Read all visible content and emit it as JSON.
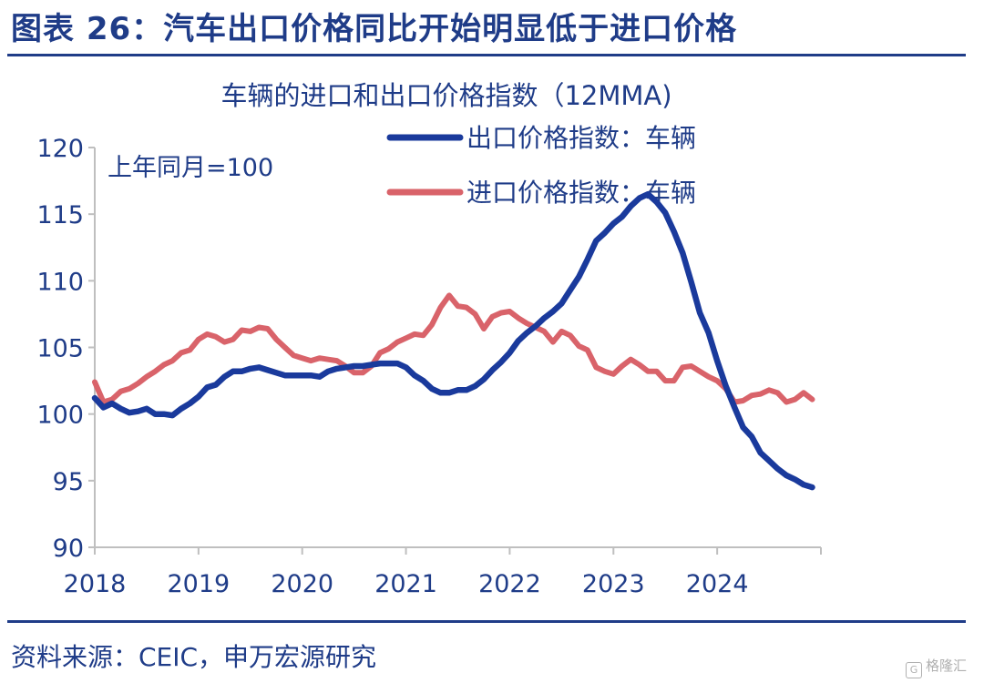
{
  "figure": {
    "title": "图表 26：汽车出口价格同比开始明显低于进口价格",
    "source": "资料来源：CEIC，申万宏源研究",
    "watermark": "格隆汇"
  },
  "colors": {
    "accent": "#1f3c88",
    "export_line": "#1a3a9c",
    "import_line": "#d9636a",
    "axis": "#bfbfbf"
  },
  "chart_data": {
    "type": "line",
    "title": "车辆的进口和出口价格指数（12MMA)",
    "annotation": "上年同月=100",
    "xlabel": "",
    "ylabel": "",
    "ylim": [
      90,
      120
    ],
    "yticks": [
      90,
      95,
      100,
      105,
      110,
      115,
      120
    ],
    "xlim": [
      2018,
      2025
    ],
    "xticks": [
      "2018",
      "2019",
      "2020",
      "2021",
      "2022",
      "2023",
      "2024"
    ],
    "grid": false,
    "legend_position": "top-right",
    "series": [
      {
        "name": "出口价格指数：车辆",
        "color": "#1a3a9c",
        "x": [
          2018.0,
          2018.083,
          2018.167,
          2018.25,
          2018.333,
          2018.417,
          2018.5,
          2018.583,
          2018.667,
          2018.75,
          2018.833,
          2018.917,
          2019.0,
          2019.083,
          2019.167,
          2019.25,
          2019.333,
          2019.417,
          2019.5,
          2019.583,
          2019.667,
          2019.75,
          2019.833,
          2019.917,
          2020.0,
          2020.083,
          2020.167,
          2020.25,
          2020.333,
          2020.417,
          2020.5,
          2020.583,
          2020.667,
          2020.75,
          2020.833,
          2020.917,
          2021.0,
          2021.083,
          2021.167,
          2021.25,
          2021.333,
          2021.417,
          2021.5,
          2021.583,
          2021.667,
          2021.75,
          2021.833,
          2021.917,
          2022.0,
          2022.083,
          2022.167,
          2022.25,
          2022.333,
          2022.417,
          2022.5,
          2022.583,
          2022.667,
          2022.75,
          2022.833,
          2022.917,
          2023.0,
          2023.083,
          2023.167,
          2023.25,
          2023.333,
          2023.417,
          2023.5,
          2023.583,
          2023.667,
          2023.75,
          2023.833,
          2023.917,
          2024.0,
          2024.083,
          2024.167,
          2024.25,
          2024.333,
          2024.417,
          2024.5,
          2024.583,
          2024.667,
          2024.75,
          2024.833,
          2024.917
        ],
        "values": [
          101.2,
          100.5,
          100.8,
          100.4,
          100.1,
          100.2,
          100.4,
          100.0,
          100.0,
          99.9,
          100.4,
          100.8,
          101.3,
          102.0,
          102.2,
          102.8,
          103.2,
          103.2,
          103.4,
          103.5,
          103.3,
          103.1,
          102.9,
          102.9,
          102.9,
          102.9,
          102.8,
          103.2,
          103.4,
          103.5,
          103.6,
          103.6,
          103.7,
          103.8,
          103.8,
          103.8,
          103.5,
          102.9,
          102.5,
          101.9,
          101.6,
          101.6,
          101.8,
          101.8,
          102.1,
          102.6,
          103.3,
          103.9,
          104.6,
          105.5,
          106.1,
          106.6,
          107.2,
          107.7,
          108.3,
          109.3,
          110.3,
          111.6,
          113.0,
          113.6,
          114.3,
          114.8,
          115.6,
          116.2,
          116.5,
          115.9,
          115.1,
          113.7,
          112.1,
          109.9,
          107.6,
          106.1,
          104.0,
          102.1,
          100.5,
          99.0,
          98.3,
          97.1,
          96.5,
          95.9,
          95.4,
          95.1,
          94.7,
          94.5
        ]
      },
      {
        "name": "进口价格指数：车辆",
        "color": "#d9636a",
        "x": [
          2018.0,
          2018.083,
          2018.167,
          2018.25,
          2018.333,
          2018.417,
          2018.5,
          2018.583,
          2018.667,
          2018.75,
          2018.833,
          2018.917,
          2019.0,
          2019.083,
          2019.167,
          2019.25,
          2019.333,
          2019.417,
          2019.5,
          2019.583,
          2019.667,
          2019.75,
          2019.833,
          2019.917,
          2020.0,
          2020.083,
          2020.167,
          2020.25,
          2020.333,
          2020.417,
          2020.5,
          2020.583,
          2020.667,
          2020.75,
          2020.833,
          2020.917,
          2021.0,
          2021.083,
          2021.167,
          2021.25,
          2021.333,
          2021.417,
          2021.5,
          2021.583,
          2021.667,
          2021.75,
          2021.833,
          2021.917,
          2022.0,
          2022.083,
          2022.167,
          2022.25,
          2022.333,
          2022.417,
          2022.5,
          2022.583,
          2022.667,
          2022.75,
          2022.833,
          2022.917,
          2023.0,
          2023.083,
          2023.167,
          2023.25,
          2023.333,
          2023.417,
          2023.5,
          2023.583,
          2023.667,
          2023.75,
          2023.833,
          2023.917,
          2024.0,
          2024.083,
          2024.167,
          2024.25,
          2024.333,
          2024.417,
          2024.5,
          2024.583,
          2024.667,
          2024.75,
          2024.833,
          2024.917
        ],
        "values": [
          102.4,
          100.9,
          101.1,
          101.7,
          101.9,
          102.3,
          102.8,
          103.2,
          103.7,
          104.0,
          104.6,
          104.8,
          105.6,
          106.0,
          105.8,
          105.4,
          105.6,
          106.3,
          106.2,
          106.5,
          106.4,
          105.6,
          105.0,
          104.4,
          104.2,
          104.0,
          104.2,
          104.1,
          104.0,
          103.6,
          103.1,
          103.1,
          103.6,
          104.6,
          104.9,
          105.4,
          105.7,
          106.0,
          105.9,
          106.7,
          108.0,
          108.9,
          108.1,
          108.0,
          107.5,
          106.4,
          107.3,
          107.6,
          107.7,
          107.2,
          106.8,
          106.5,
          106.2,
          105.4,
          106.2,
          105.9,
          105.1,
          104.8,
          103.5,
          103.2,
          103.0,
          103.6,
          104.1,
          103.7,
          103.2,
          103.2,
          102.5,
          102.5,
          103.5,
          103.6,
          103.2,
          102.8,
          102.5,
          101.9,
          100.9,
          101.0,
          101.4,
          101.5,
          101.8,
          101.6,
          100.9,
          101.1,
          101.6,
          101.1
        ]
      }
    ]
  }
}
